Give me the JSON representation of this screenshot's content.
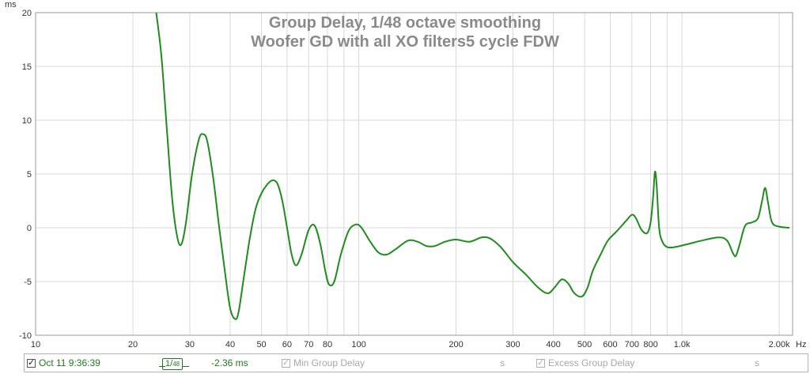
{
  "chart_data": {
    "type": "line",
    "title": "Group Delay, 1/48 octave smoothing",
    "subtitle": "Woofer GD with all XO filters5 cycle  FDW",
    "xlabel": "Hz",
    "ylabel": "ms",
    "x_scale": "log",
    "xlim": [
      10,
      2200
    ],
    "ylim": [
      -10,
      20
    ],
    "x_ticks": [
      {
        "value": 10,
        "label": "10"
      },
      {
        "value": 20,
        "label": "20"
      },
      {
        "value": 30,
        "label": "30"
      },
      {
        "value": 40,
        "label": "40"
      },
      {
        "value": 50,
        "label": "50"
      },
      {
        "value": 60,
        "label": "60"
      },
      {
        "value": 70,
        "label": "70"
      },
      {
        "value": 80,
        "label": "80"
      },
      {
        "value": 100,
        "label": "100"
      },
      {
        "value": 200,
        "label": "200"
      },
      {
        "value": 300,
        "label": "300"
      },
      {
        "value": 400,
        "label": "400"
      },
      {
        "value": 500,
        "label": "500"
      },
      {
        "value": 600,
        "label": "600"
      },
      {
        "value": 700,
        "label": "700"
      },
      {
        "value": 800,
        "label": "800"
      },
      {
        "value": 1000,
        "label": "1.0k"
      },
      {
        "value": 2000,
        "label": "2.00k"
      }
    ],
    "y_ticks": [
      -10,
      -5,
      0,
      5,
      10,
      15,
      20
    ],
    "grid": true,
    "series": [
      {
        "color": "#1e8c1e",
        "points": [
          [
            23.5,
            20.5
          ],
          [
            24.5,
            16
          ],
          [
            25.5,
            9
          ],
          [
            26.5,
            2.5
          ],
          [
            27.5,
            -1
          ],
          [
            28.3,
            -1.5
          ],
          [
            29.2,
            0.5
          ],
          [
            30.5,
            5
          ],
          [
            32.0,
            8.2
          ],
          [
            33.0,
            8.7
          ],
          [
            34.0,
            8
          ],
          [
            35.5,
            4.5
          ],
          [
            37.0,
            0
          ],
          [
            38.5,
            -4
          ],
          [
            40.0,
            -7.5
          ],
          [
            41.5,
            -8.5
          ],
          [
            42.5,
            -7.8
          ],
          [
            44.0,
            -4.8
          ],
          [
            46.0,
            -1
          ],
          [
            48.0,
            1.8
          ],
          [
            50.0,
            3.2
          ],
          [
            52.0,
            4.0
          ],
          [
            54.0,
            4.4
          ],
          [
            56.0,
            4.1
          ],
          [
            58.0,
            2.5
          ],
          [
            60.0,
            0
          ],
          [
            62.0,
            -2.5
          ],
          [
            64.0,
            -3.5
          ],
          [
            66.5,
            -2.5
          ],
          [
            70.0,
            -0.2
          ],
          [
            73.0,
            0.2
          ],
          [
            76.0,
            -1.5
          ],
          [
            79.0,
            -4.2
          ],
          [
            81.0,
            -5.3
          ],
          [
            84.0,
            -5
          ],
          [
            88.0,
            -2.5
          ],
          [
            93.0,
            -0.3
          ],
          [
            98.0,
            0.3
          ],
          [
            102.0,
            0
          ],
          [
            108.0,
            -1.2
          ],
          [
            115.0,
            -2.3
          ],
          [
            122.0,
            -2.5
          ],
          [
            130.0,
            -2
          ],
          [
            142.0,
            -1.2
          ],
          [
            152.0,
            -1.3
          ],
          [
            162.0,
            -1.7
          ],
          [
            172.0,
            -1.7
          ],
          [
            185.0,
            -1.3
          ],
          [
            200.0,
            -1.1
          ],
          [
            220.0,
            -1.3
          ],
          [
            240.0,
            -0.9
          ],
          [
            255.0,
            -1.0
          ],
          [
            275.0,
            -1.8
          ],
          [
            300.0,
            -3.2
          ],
          [
            330.0,
            -4.4
          ],
          [
            360.0,
            -5.6
          ],
          [
            385.0,
            -6.1
          ],
          [
            405.0,
            -5.5
          ],
          [
            425.0,
            -4.8
          ],
          [
            445.0,
            -5.2
          ],
          [
            465.0,
            -6.1
          ],
          [
            490.0,
            -6.4
          ],
          [
            510.0,
            -5.6
          ],
          [
            530.0,
            -4
          ],
          [
            560.0,
            -2.5
          ],
          [
            590.0,
            -1.2
          ],
          [
            630.0,
            -0.3
          ],
          [
            670.0,
            0.6
          ],
          [
            700.0,
            1.2
          ],
          [
            720.0,
            0.9
          ],
          [
            750.0,
            -0.2
          ],
          [
            780.0,
            -0.5
          ],
          [
            800.0,
            0.5
          ],
          [
            815.0,
            3
          ],
          [
            825.0,
            5.2
          ],
          [
            835.0,
            4
          ],
          [
            850.0,
            0
          ],
          [
            870.0,
            -1.3
          ],
          [
            900.0,
            -1.8
          ],
          [
            950.0,
            -1.8
          ],
          [
            1050.0,
            -1.5
          ],
          [
            1150.0,
            -1.2
          ],
          [
            1300.0,
            -0.9
          ],
          [
            1380.0,
            -1.2
          ],
          [
            1440.0,
            -2.4
          ],
          [
            1470.0,
            -2.6
          ],
          [
            1510.0,
            -1.5
          ],
          [
            1570.0,
            0.2
          ],
          [
            1650.0,
            0.5
          ],
          [
            1720.0,
            0.9
          ],
          [
            1770.0,
            2.5
          ],
          [
            1810.0,
            3.7
          ],
          [
            1850.0,
            2.2
          ],
          [
            1900.0,
            0.5
          ],
          [
            2000.0,
            0.1
          ],
          [
            2150.0,
            0
          ]
        ]
      }
    ]
  },
  "legend": {
    "trace_date": "Oct 11 9:36:39",
    "smoothing_num": "1/",
    "smoothing_den": "48",
    "cursor_value": "-2.36 ms",
    "min_gd_label": "Min Group Delay",
    "min_gd_unit": "s",
    "excess_gd_label": "Excess Group Delay",
    "excess_gd_unit": "s",
    "trace_color": "#1e7a1e",
    "disabled_color": "#a8a8a8"
  }
}
